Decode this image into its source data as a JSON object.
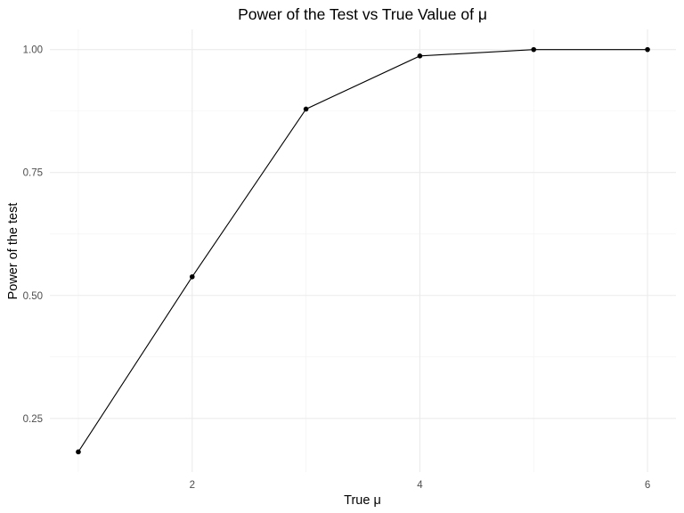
{
  "chart_data": {
    "type": "line",
    "title": "Power of the Test vs True Value of μ",
    "xlabel": "True μ",
    "ylabel": "Power of the test",
    "x": [
      1,
      2,
      3,
      4,
      5,
      6
    ],
    "series": [
      {
        "values": [
          0.182,
          0.538,
          0.879,
          0.987,
          1.0,
          1.0
        ]
      }
    ],
    "xlim": [
      0.75,
      6.25
    ],
    "ylim": [
      0.141,
      1.041
    ],
    "x_ticks": [
      2,
      4,
      6
    ],
    "x_tick_labels": [
      "2",
      "4",
      "6"
    ],
    "y_ticks": [
      0.25,
      0.5,
      0.75,
      1.0
    ],
    "y_tick_labels": [
      "0.25",
      "0.50",
      "0.75",
      "1.00"
    ],
    "markers": true,
    "grid": true,
    "legend": "none",
    "colors": {
      "series": "#000000",
      "grid": "#ebebeb",
      "background": "#ffffff"
    }
  }
}
